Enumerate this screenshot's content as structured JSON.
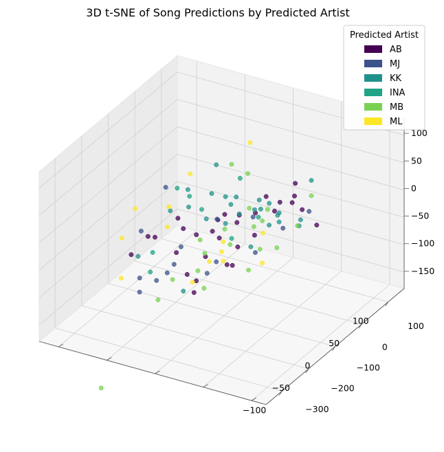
{
  "chart_data": {
    "type": "scatter",
    "title": "3D t-SNE of Song Predictions by Predicted Artist",
    "xlabel": "",
    "ylabel": "",
    "zlabel": "",
    "axes": {
      "x": {
        "ticks": [
          -100,
          -50,
          0,
          50,
          100
        ],
        "tick_labels": [
          "−100",
          "−50",
          "0",
          "50",
          "100"
        ],
        "range": [
          -130,
          130
        ]
      },
      "y": {
        "ticks": [
          -300,
          -200,
          -100,
          0,
          100
        ],
        "tick_labels": [
          "−300",
          "−200",
          "−100",
          "0",
          "100"
        ],
        "range": [
          -330,
          140
        ]
      },
      "z": {
        "ticks": [
          -150,
          -100,
          -50,
          0,
          50,
          100
        ],
        "tick_labels": [
          "−150",
          "−100",
          "−50",
          "0",
          "50",
          "100"
        ],
        "range": [
          -180,
          130
        ]
      }
    },
    "grid": true,
    "legend": {
      "title": "Predicted Artist",
      "placement": "top-right",
      "entries": [
        {
          "name": "AB",
          "color": "#440154"
        },
        {
          "name": "MJ",
          "color": "#3b528b"
        },
        {
          "name": "KK",
          "color": "#21918c"
        },
        {
          "name": "INA",
          "color": "#20a386"
        },
        {
          "name": "MB",
          "color": "#7ad151"
        },
        {
          "name": "ML",
          "color": "#fde725"
        }
      ]
    },
    "series": [
      {
        "name": "AB",
        "color": "#440154",
        "points": [
          [
            -95,
            20,
            45
          ],
          [
            -105,
            -10,
            20
          ],
          [
            -98,
            50,
            40
          ],
          [
            -60,
            30,
            60
          ],
          [
            -45,
            10,
            35
          ],
          [
            -40,
            40,
            15
          ],
          [
            -20,
            60,
            30
          ],
          [
            -15,
            30,
            10
          ],
          [
            -5,
            45,
            35
          ],
          [
            0,
            80,
            25
          ],
          [
            10,
            -10,
            -10
          ],
          [
            15,
            35,
            10
          ],
          [
            30,
            0,
            -40
          ],
          [
            45,
            20,
            15
          ],
          [
            55,
            30,
            40
          ],
          [
            65,
            50,
            20
          ],
          [
            70,
            20,
            5
          ],
          [
            85,
            40,
            10
          ],
          [
            90,
            60,
            -10
          ],
          [
            95,
            25,
            45
          ],
          [
            100,
            10,
            20
          ],
          [
            105,
            70,
            -50
          ],
          [
            -20,
            -40,
            -60
          ],
          [
            0,
            -60,
            -80
          ],
          [
            40,
            -60,
            -70
          ],
          [
            45,
            -55,
            -75
          ],
          [
            -15,
            -30,
            -100
          ],
          [
            20,
            -80,
            -40
          ],
          [
            60,
            -20,
            -30
          ],
          [
            -30,
            -50,
            -10
          ]
        ]
      },
      {
        "name": "MJ",
        "color": "#3b528b",
        "points": [
          [
            -100,
            10,
            60
          ],
          [
            -80,
            40,
            130
          ],
          [
            -90,
            -20,
            -60
          ],
          [
            -110,
            30,
            -30
          ],
          [
            -70,
            20,
            -40
          ],
          [
            -40,
            -10,
            0
          ],
          [
            -45,
            -20,
            -30
          ],
          [
            -60,
            -40,
            -50
          ],
          [
            -10,
            0,
            -70
          ],
          [
            10,
            -20,
            -55
          ],
          [
            65,
            -30,
            -65
          ],
          [
            85,
            10,
            -35
          ],
          [
            115,
            20,
            -20
          ],
          [
            30,
            50,
            10
          ],
          [
            -5,
            20,
            30
          ]
        ]
      },
      {
        "name": "KK",
        "color": "#21918c",
        "points": [
          [
            -70,
            30,
            80
          ],
          [
            -55,
            50,
            110
          ],
          [
            -30,
            80,
            140
          ],
          [
            -20,
            40,
            85
          ],
          [
            -10,
            60,
            70
          ],
          [
            5,
            40,
            50
          ],
          [
            10,
            10,
            15
          ],
          [
            20,
            30,
            25
          ],
          [
            30,
            70,
            40
          ],
          [
            40,
            50,
            20
          ],
          [
            55,
            40,
            25
          ],
          [
            60,
            60,
            0
          ],
          [
            70,
            30,
            -5
          ],
          [
            80,
            10,
            -20
          ],
          [
            90,
            50,
            -40
          ],
          [
            100,
            30,
            -30
          ],
          [
            110,
            40,
            40
          ],
          [
            75,
            -10,
            -20
          ],
          [
            55,
            -20,
            -50
          ],
          [
            -25,
            -40,
            -90
          ],
          [
            -80,
            -50,
            10
          ],
          [
            20,
            20,
            60
          ],
          [
            -50,
            40,
            75
          ],
          [
            -35,
            60,
            40
          ],
          [
            60,
            -20,
            20
          ]
        ]
      },
      {
        "name": "INA",
        "color": "#20a386",
        "points": [
          [
            -65,
            40,
            120
          ],
          [
            -45,
            30,
            95
          ],
          [
            -25,
            20,
            60
          ],
          [
            15,
            45,
            95
          ],
          [
            45,
            30,
            5
          ],
          [
            -60,
            -60,
            -30
          ],
          [
            -85,
            10,
            10
          ],
          [
            30,
            -20,
            -20
          ]
        ]
      },
      {
        "name": "MB",
        "color": "#7ad151",
        "points": [
          [
            -10,
            80,
            130
          ],
          [
            15,
            70,
            100
          ],
          [
            25,
            50,
            30
          ],
          [
            35,
            40,
            -10
          ],
          [
            45,
            60,
            15
          ],
          [
            50,
            30,
            -5
          ],
          [
            55,
            10,
            -60
          ],
          [
            20,
            0,
            -30
          ],
          [
            -5,
            -20,
            -30
          ],
          [
            -10,
            -30,
            -60
          ],
          [
            -35,
            -50,
            -60
          ],
          [
            -50,
            -60,
            -90
          ],
          [
            10,
            -60,
            -100
          ],
          [
            60,
            -40,
            -95
          ],
          [
            100,
            20,
            -40
          ],
          [
            110,
            40,
            10
          ],
          [
            -15,
            -10,
            0
          ],
          [
            -60,
            -220,
            -230
          ],
          [
            85,
            -10,
            -70
          ],
          [
            5,
            20,
            5
          ]
        ]
      },
      {
        "name": "ML",
        "color": "#fde725",
        "points": [
          [
            -120,
            40,
            110
          ],
          [
            -125,
            10,
            60
          ],
          [
            -110,
            -30,
            -20
          ],
          [
            -80,
            50,
            90
          ],
          [
            -70,
            20,
            50
          ],
          [
            -60,
            70,
            140
          ],
          [
            10,
            90,
            160
          ],
          [
            15,
            -10,
            -20
          ],
          [
            5,
            -30,
            -50
          ],
          [
            25,
            -40,
            -40
          ],
          [
            35,
            -60,
            -60
          ],
          [
            -5,
            -60,
            -80
          ],
          [
            70,
            -20,
            -90
          ],
          [
            55,
            20,
            -30
          ]
        ]
      }
    ]
  }
}
